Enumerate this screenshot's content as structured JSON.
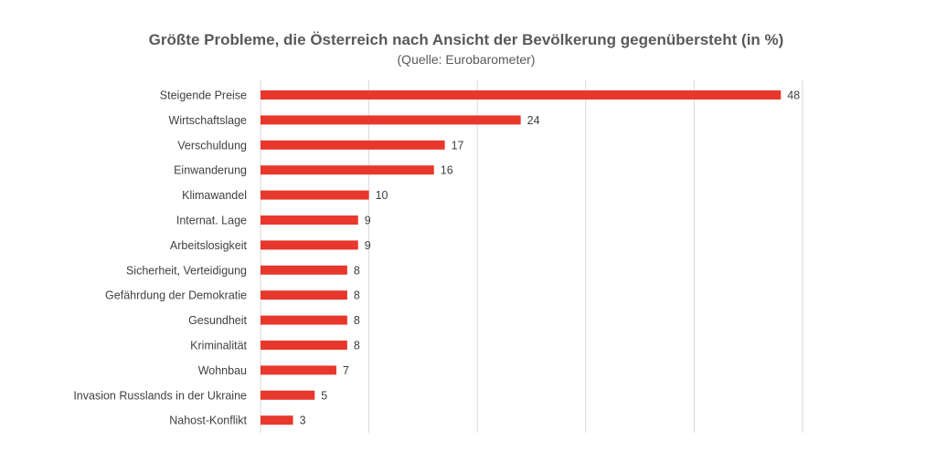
{
  "chart_data": {
    "type": "bar",
    "orientation": "horizontal",
    "title": "Größte Probleme, die Österreich nach Ansicht der Bevölkerung gegenübersteht (in %)",
    "subtitle": "(Quelle: Eurobarometer)",
    "categories": [
      "Steigende Preise",
      "Wirtschaftslage",
      "Verschuldung",
      "Einwanderung",
      "Klimawandel",
      "Internat. Lage",
      "Arbeitslosigkeit",
      "Sicherheit, Verteidigung",
      "Gefährdung der Demokratie",
      "Gesundheit",
      "Kriminalität",
      "Wohnbau",
      "Invasion Russlands in der Ukraine",
      "Nahost-Konflikt"
    ],
    "values": [
      48,
      24,
      17,
      16,
      10,
      9,
      9,
      8,
      8,
      8,
      8,
      7,
      5,
      3
    ],
    "xlim": [
      0,
      50
    ],
    "gridlines": [
      0,
      10,
      20,
      30,
      40,
      50
    ],
    "grid": true,
    "legend": "none",
    "data_labels": true,
    "bar_color": "#e8372c",
    "grid_color": "#d9d9d9"
  }
}
